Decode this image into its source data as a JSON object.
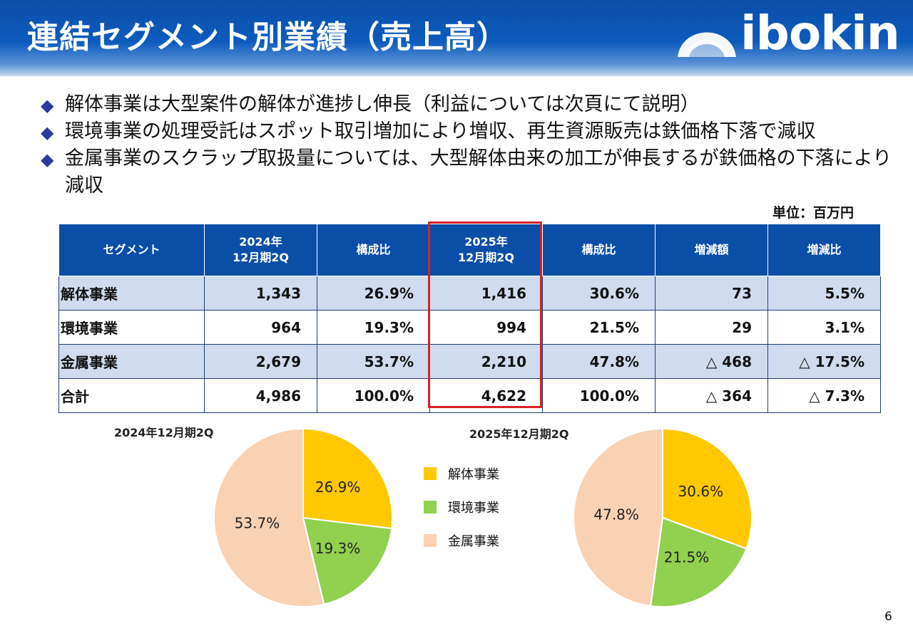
{
  "header": {
    "title": "連結セグメント別業績（売上高）",
    "logo_text": "ibokin"
  },
  "bullets": [
    "解体事業は大型案件の解体が進捗し伸長（利益については次頁にて説明）",
    "環境事業の処理受託はスポット取引増加により増収、再生資源販売は鉄価格下落で減収",
    "金属事業のスクラップ取扱量については、大型解体由来の加工が伸長するが鉄価格の下落により減収"
  ],
  "unit": "単位：百万円",
  "table": {
    "headers": [
      "セグメント",
      "2024年\n12月期2Q",
      "構成比",
      "2025年\n12月期2Q",
      "構成比",
      "増減額",
      "増減比"
    ],
    "rows": [
      [
        "解体事業",
        "1,343",
        "26.9%",
        "1,416",
        "30.6%",
        "73",
        "5.5%"
      ],
      [
        "環境事業",
        "964",
        "19.3%",
        "994",
        "21.5%",
        "29",
        "3.1%"
      ],
      [
        "金属事業",
        "2,679",
        "53.7%",
        "2,210",
        "47.8%",
        "△ 468",
        "△ 17.5%"
      ],
      [
        "合計",
        "4,986",
        "100.0%",
        "4,622",
        "100.0%",
        "△ 364",
        "△ 7.3%"
      ]
    ]
  },
  "legend": [
    {
      "label": "解体事業",
      "color": "#ffc800"
    },
    {
      "label": "環境事業",
      "color": "#92d050"
    },
    {
      "label": "金属事業",
      "color": "#f9d2b4"
    }
  ],
  "chart_data": [
    {
      "type": "pie",
      "title": "2024年12月期2Q",
      "categories": [
        "解体事業",
        "環境事業",
        "金属事業"
      ],
      "values": [
        26.9,
        19.3,
        53.7
      ],
      "labels": [
        "26.9%",
        "19.3%",
        "53.7%"
      ],
      "colors": [
        "#ffc800",
        "#92d050",
        "#f9d2b4"
      ]
    },
    {
      "type": "pie",
      "title": "2025年12月期2Q",
      "categories": [
        "解体事業",
        "環境事業",
        "金属事業"
      ],
      "values": [
        30.6,
        21.5,
        47.8
      ],
      "labels": [
        "30.6%",
        "21.5%",
        "47.8%"
      ],
      "colors": [
        "#ffc800",
        "#92d050",
        "#f9d2b4"
      ]
    }
  ],
  "page_number": "6"
}
